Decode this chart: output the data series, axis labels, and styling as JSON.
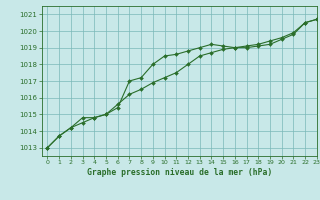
{
  "title": "Graphe pression niveau de la mer (hPa)",
  "background_color": "#c8e8e8",
  "grid_color": "#7ab8b8",
  "line_color": "#2a6e2a",
  "xlim": [
    -0.5,
    23
  ],
  "ylim": [
    1012.5,
    1021.5
  ],
  "yticks": [
    1013,
    1014,
    1015,
    1016,
    1017,
    1018,
    1019,
    1020,
    1021
  ],
  "xticks": [
    0,
    1,
    2,
    3,
    4,
    5,
    6,
    7,
    8,
    9,
    10,
    11,
    12,
    13,
    14,
    15,
    16,
    17,
    18,
    19,
    20,
    21,
    22,
    23
  ],
  "series1": [
    1013.0,
    1013.7,
    1014.2,
    1014.5,
    1014.8,
    1015.0,
    1015.4,
    1017.0,
    1017.2,
    1018.0,
    1018.5,
    1018.6,
    1018.8,
    1019.0,
    1019.2,
    1019.1,
    1019.0,
    1019.0,
    1019.1,
    1019.2,
    1019.5,
    1019.8,
    1020.5,
    1020.7
  ],
  "series2": [
    1013.0,
    1013.7,
    1014.2,
    1014.8,
    1014.8,
    1015.0,
    1015.6,
    1016.2,
    1016.5,
    1016.9,
    1017.2,
    1017.5,
    1018.0,
    1018.5,
    1018.7,
    1018.9,
    1019.0,
    1019.1,
    1019.2,
    1019.4,
    1019.6,
    1019.9,
    1020.5,
    1020.7
  ]
}
